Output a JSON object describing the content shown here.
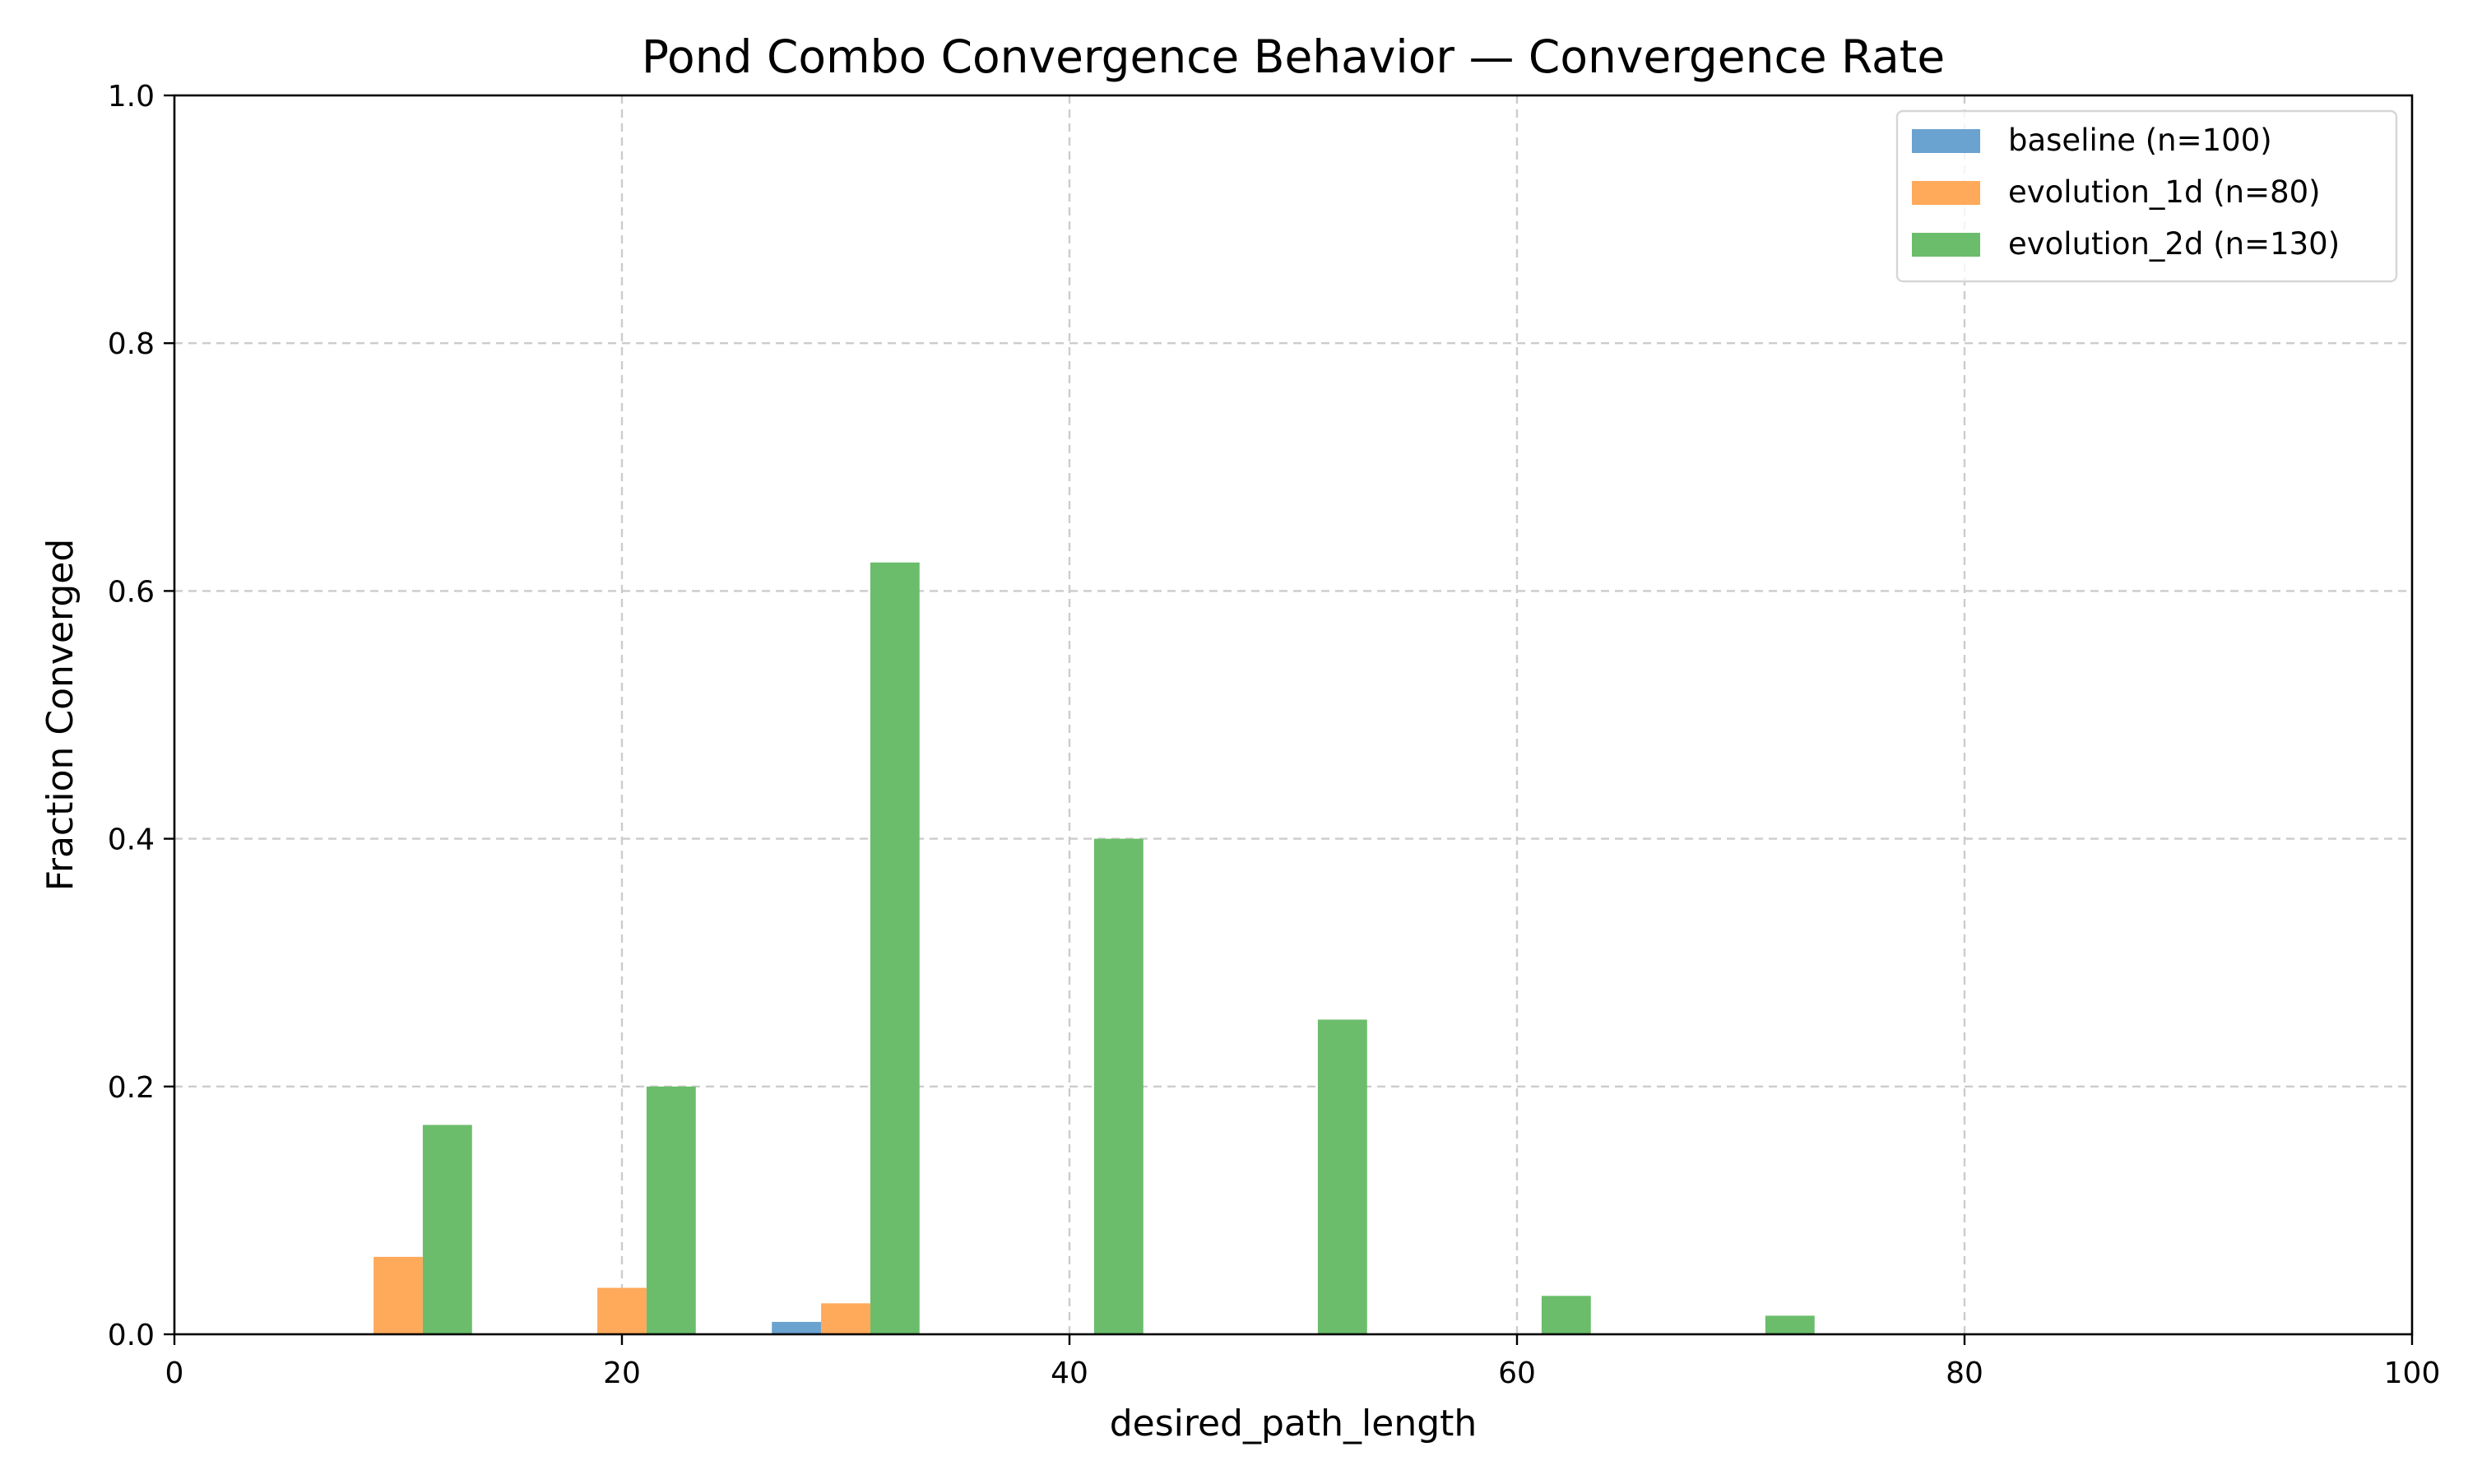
{
  "chart_data": {
    "type": "bar",
    "title": "Pond Combo Convergence Behavior — Convergence Rate",
    "xlabel": "desired_path_length",
    "ylabel": "Fraction Converged",
    "xlim": [
      0,
      100
    ],
    "ylim": [
      0,
      1.0
    ],
    "x_ticks": [
      "0",
      "20",
      "40",
      "60",
      "80",
      "100"
    ],
    "y_ticks": [
      "0.0",
      "0.2",
      "0.4",
      "0.6",
      "0.8",
      "1.0"
    ],
    "grid": true,
    "legend_position": "top-right",
    "bar_width": 2.2,
    "categories": [
      10,
      20,
      30,
      40,
      50,
      60,
      70
    ],
    "series": [
      {
        "name": "baseline (n=100)",
        "color": "#6aa2d0",
        "values": [
          0,
          0,
          0.01,
          0,
          0,
          0,
          0
        ]
      },
      {
        "name": "evolution_1d (n=80)",
        "color": "#ffa95a",
        "values": [
          0.0625,
          0.0375,
          0.025,
          0,
          0,
          0,
          0
        ]
      },
      {
        "name": "evolution_2d (n=130)",
        "color": "#6bbd6b",
        "values": [
          0.169,
          0.2,
          0.623,
          0.4,
          0.254,
          0.031,
          0.015
        ]
      }
    ]
  }
}
